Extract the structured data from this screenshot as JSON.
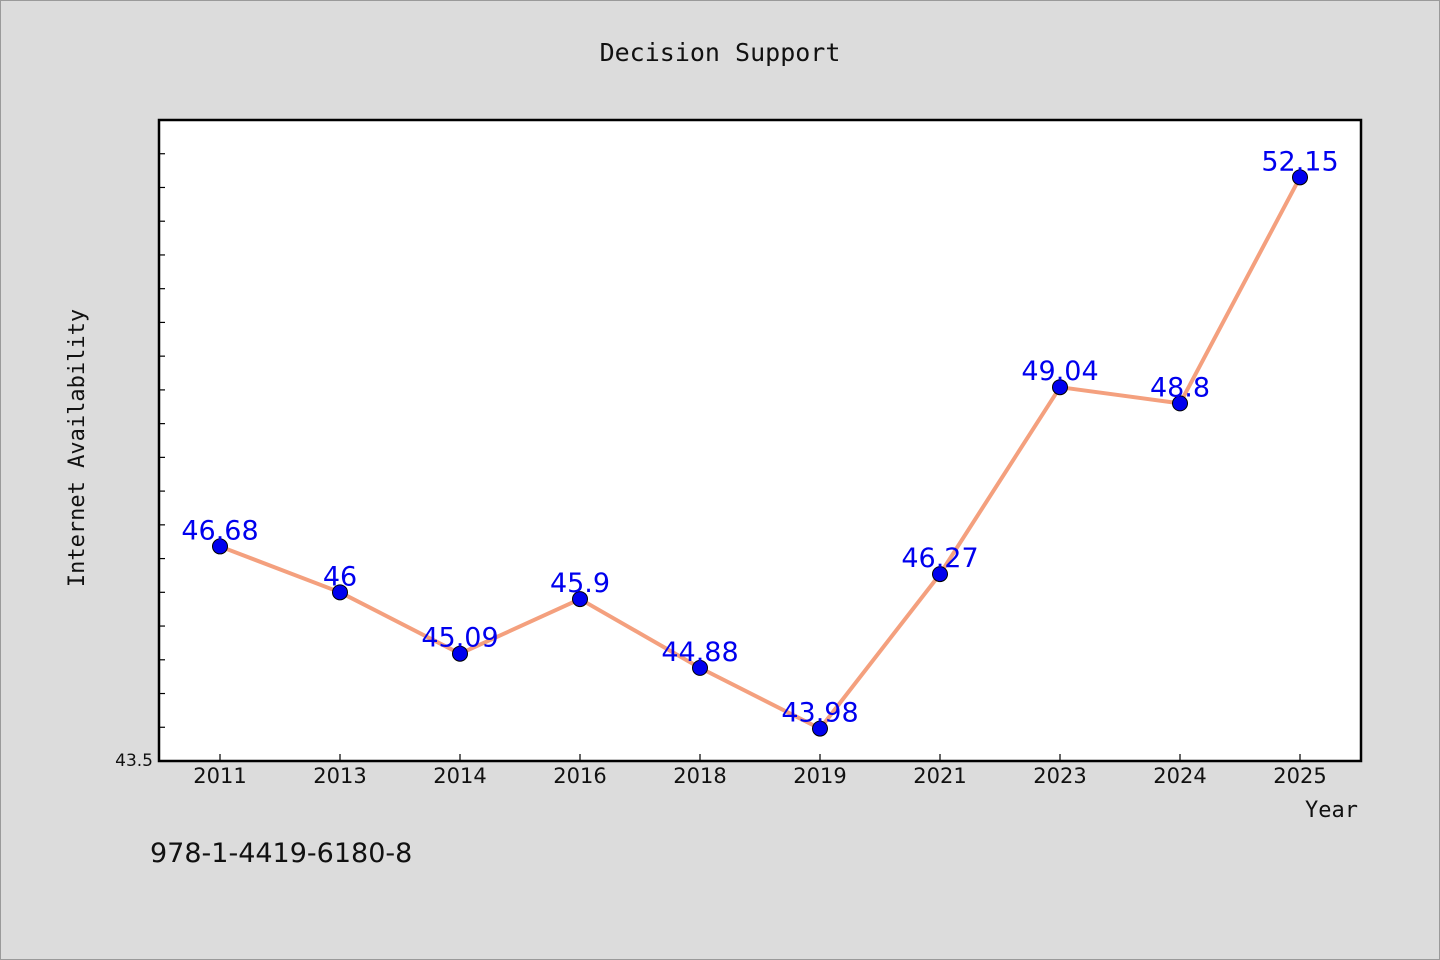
{
  "chart_data": {
    "type": "line",
    "title": "Decision Support",
    "xlabel": "Year",
    "ylabel": "Internet Availability",
    "categories": [
      "2011",
      "2013",
      "2014",
      "2016",
      "2018",
      "2019",
      "2021",
      "2023",
      "2024",
      "2025"
    ],
    "series": [
      {
        "values": [
          46.68,
          46,
          45.09,
          45.9,
          44.88,
          43.98,
          46.27,
          49.04,
          48.8,
          52.15
        ],
        "line_color": "#f4a07e",
        "marker_color": "#0000ee"
      }
    ],
    "ylim": [
      43.5,
      53.0
    ],
    "y_tick_labels": [
      "43.5"
    ],
    "grid": false,
    "legend": "none",
    "label_color": "#0000ee",
    "footer": "978-1-4419-6180-8"
  }
}
